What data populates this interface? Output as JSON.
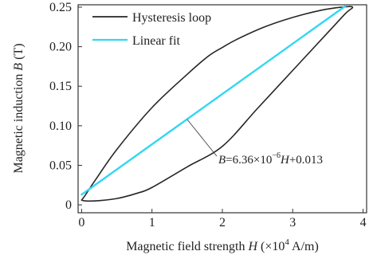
{
  "chart_data": {
    "type": "line",
    "xlabel": {
      "prefix": "Magnetic field strength ",
      "var": "H",
      "unit_open": " (×10",
      "unit_exp": "4",
      "unit_close": " A/m)"
    },
    "ylabel": {
      "prefix": "Magnetic induction ",
      "var": "B",
      "unit": " (T)"
    },
    "xlim": [
      -0.05,
      4.05
    ],
    "ylim": [
      -0.01,
      0.253
    ],
    "x_ticks": [
      0,
      1,
      2,
      3,
      4
    ],
    "x_tick_labels": [
      "0",
      "1",
      "2",
      "3",
      "4"
    ],
    "y_ticks": [
      0,
      0.05,
      0.1,
      0.15,
      0.2,
      0.25
    ],
    "y_tick_labels": [
      "0",
      "0.05",
      "0.10",
      "0.15",
      "0.20",
      "0.25"
    ],
    "legend_position": "top-left",
    "series": [
      {
        "name": "Hysteresis loop",
        "color": "#262626",
        "x": [
          0.0,
          0.05,
          0.2,
          0.5,
          0.8,
          1.0,
          1.5,
          2.0,
          2.5,
          3.0,
          3.5,
          3.75,
          3.85,
          3.7,
          3.4,
          3.0,
          2.6,
          2.2,
          2.0,
          1.8,
          1.5,
          1.0,
          0.5,
          0.2,
          0.05,
          0.0
        ],
        "y": [
          0.006,
          0.005,
          0.005,
          0.008,
          0.015,
          0.022,
          0.048,
          0.074,
          0.122,
          0.17,
          0.218,
          0.242,
          0.25,
          0.25,
          0.246,
          0.237,
          0.225,
          0.209,
          0.199,
          0.188,
          0.165,
          0.123,
          0.07,
          0.032,
          0.012,
          0.006
        ]
      },
      {
        "name": "Linear fit",
        "color": "#33d7f2",
        "x": [
          0.0,
          3.75
        ],
        "y": [
          0.013,
          0.2515
        ]
      }
    ],
    "annotation": {
      "var_B": "B",
      "eq_part1": "=6.36×10",
      "eq_exp": "−6",
      "var_H": "H",
      "eq_part2": "+0.013",
      "points_to": {
        "x": 1.5,
        "y": 0.108
      }
    }
  }
}
